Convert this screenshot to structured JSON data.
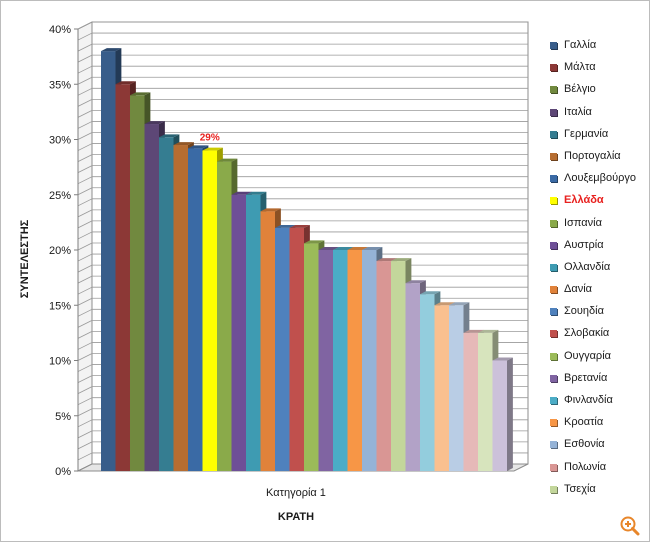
{
  "chart_data": {
    "type": "bar",
    "xlabel": "ΚΡΑΤΗ",
    "ylabel": "ΣΥΝΤΕΛΕΣΤΗΣ",
    "categories": [
      "Κατηγορία 1"
    ],
    "ylim": [
      0,
      40
    ],
    "yticks": [
      "0%",
      "5%",
      "10%",
      "15%",
      "20%",
      "25%",
      "30%",
      "35%",
      "40%"
    ],
    "grid": true,
    "legend_position": "right",
    "highlight_series": "Ελλάδα",
    "highlight_label": "29%",
    "series": [
      {
        "name": "Γαλλία",
        "values": [
          38
        ],
        "color": "#385d8a"
      },
      {
        "name": "Μάλτα",
        "values": [
          35
        ],
        "color": "#8c3836"
      },
      {
        "name": "Βέλγιο",
        "values": [
          34
        ],
        "color": "#71893f"
      },
      {
        "name": "Ιταλία",
        "values": [
          31.4
        ],
        "color": "#5d4776"
      },
      {
        "name": "Γερμανία",
        "values": [
          30.2
        ],
        "color": "#357d91"
      },
      {
        "name": "Πορτογαλία",
        "values": [
          29.5
        ],
        "color": "#b66d31"
      },
      {
        "name": "Λουξεμβούργο",
        "values": [
          29.2
        ],
        "color": "#3a6aa5"
      },
      {
        "name": "Ελλάδα",
        "values": [
          29
        ],
        "color": "#ffff00"
      },
      {
        "name": "Ισπανία",
        "values": [
          28
        ],
        "color": "#8aaa4a"
      },
      {
        "name": "Αυστρία",
        "values": [
          25
        ],
        "color": "#6e4f97"
      },
      {
        "name": "Ολλανδία",
        "values": [
          25
        ],
        "color": "#3e9bb2"
      },
      {
        "name": "Δανία",
        "values": [
          23.5
        ],
        "color": "#e0823a"
      },
      {
        "name": "Σουηδία",
        "values": [
          22
        ],
        "color": "#4f81bd"
      },
      {
        "name": "Σλοβακία",
        "values": [
          22
        ],
        "color": "#c0504d"
      },
      {
        "name": "Ουγγαρία",
        "values": [
          20.6
        ],
        "color": "#9bbb59"
      },
      {
        "name": "Βρετανία",
        "values": [
          20
        ],
        "color": "#8064a2"
      },
      {
        "name": "Φινλανδία",
        "values": [
          20
        ],
        "color": "#4bacc6"
      },
      {
        "name": "Κροατία",
        "values": [
          20
        ],
        "color": "#f79646"
      },
      {
        "name": "Εσθονία",
        "values": [
          20
        ],
        "color": "#95b3d7"
      },
      {
        "name": "Πολωνία",
        "values": [
          19
        ],
        "color": "#d99694"
      },
      {
        "name": "Τσεχία",
        "values": [
          19
        ],
        "color": "#c3d69b"
      },
      {
        "name": "",
        "values": [
          17
        ],
        "color": "#b2a2c7"
      },
      {
        "name": "",
        "values": [
          16
        ],
        "color": "#93cddd"
      },
      {
        "name": "",
        "values": [
          15
        ],
        "color": "#fac08f"
      },
      {
        "name": "",
        "values": [
          15
        ],
        "color": "#b9cde5"
      },
      {
        "name": "",
        "values": [
          12.5
        ],
        "color": "#e6b9b8"
      },
      {
        "name": "",
        "values": [
          12.5
        ],
        "color": "#d7e4bd"
      },
      {
        "name": "",
        "values": [
          10
        ],
        "color": "#ccc1da"
      }
    ]
  },
  "ui": {
    "zoom_icon": "zoom-in-icon",
    "accent_color": "#e8211f"
  }
}
